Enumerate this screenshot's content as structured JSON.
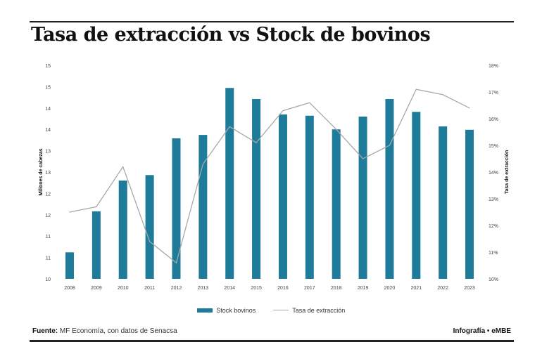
{
  "chart_data": {
    "type": "bar+line",
    "title": "Tasa de extracción vs Stock de bovinos",
    "categories": [
      "2008",
      "2009",
      "2010",
      "2011",
      "2012",
      "2013",
      "2014",
      "2015",
      "2016",
      "2017",
      "2018",
      "2019",
      "2020",
      "2021",
      "2022",
      "2023"
    ],
    "series": [
      {
        "name": "Stock bovinos",
        "type": "bar",
        "axis": "left",
        "color": "#1e7b99",
        "values": [
          10.62,
          11.58,
          12.3,
          12.43,
          13.29,
          13.37,
          14.47,
          14.21,
          13.85,
          13.82,
          13.5,
          13.8,
          14.21,
          13.91,
          13.57,
          13.49
        ]
      },
      {
        "name": "Tasa de extracción",
        "type": "line",
        "axis": "right",
        "color": "#a8a8a8",
        "values": [
          12.5,
          12.7,
          14.2,
          11.4,
          10.6,
          14.3,
          15.7,
          15.1,
          16.3,
          16.6,
          15.6,
          14.5,
          15.0,
          17.1,
          16.9,
          16.4
        ]
      }
    ],
    "ylabel": "Millones de cabezas",
    "ylim": [
      10,
      15
    ],
    "yticks": [
      "10",
      "11",
      "11",
      "12",
      "12",
      "13",
      "13",
      "14",
      "14",
      "15",
      "15"
    ],
    "y2label": "Tasa de extracción",
    "y2lim": [
      10,
      18
    ],
    "y2ticks": [
      "10%",
      "11%",
      "12%",
      "13%",
      "14%",
      "15%",
      "16%",
      "17%",
      "18%"
    ],
    "grid": false,
    "legend": "bottom"
  },
  "footer": {
    "source_label": "Fuente:",
    "source_text": " MF Economía, con datos de Senacsa",
    "credit": "Infografía • eMBE"
  }
}
